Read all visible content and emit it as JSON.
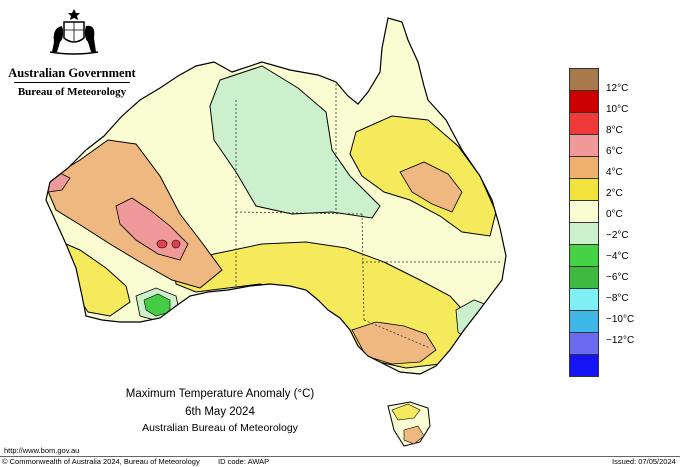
{
  "logo": {
    "government": "Australian Government",
    "bureau": "Bureau of Meteorology",
    "emblem_icon": "coat-of-arms-icon"
  },
  "legend": {
    "colors": [
      "#a8794a",
      "#cc0000",
      "#f03a3a",
      "#f0999b",
      "#f0b070",
      "#f2e33c",
      "#fafcd2",
      "#ccf0cc",
      "#44d244",
      "#3fb83f",
      "#80eff3",
      "#3fb8e8",
      "#6a6af0",
      "#1414f5"
    ],
    "labels": [
      "12°C",
      "10°C",
      "8°C",
      "6°C",
      "4°C",
      "2°C",
      "0°C",
      "−2°C",
      "−4°C",
      "−6°C",
      "−8°C",
      "−10°C",
      "−12°C"
    ]
  },
  "map": {
    "land_color": "#fafcd2",
    "zone_colors": {
      "green": "#ccf0cc",
      "yellow": "#f5ea5c",
      "orange": "#eeb880",
      "pink": "#f0999b",
      "red": "#e04050",
      "deepgreen": "#44cc44"
    }
  },
  "caption": {
    "title": "Maximum Temperature Anomaly (°C)",
    "date": "6th May 2024",
    "source": "Australian Bureau of Meteorology"
  },
  "url": "http://www.bom.gov.au",
  "footer": {
    "copyright": "© Commonwealth of Australia 2024, Bureau of Meteorology",
    "id_code": "ID code: AWAP",
    "issued": "Issued: 07/05/2024"
  }
}
